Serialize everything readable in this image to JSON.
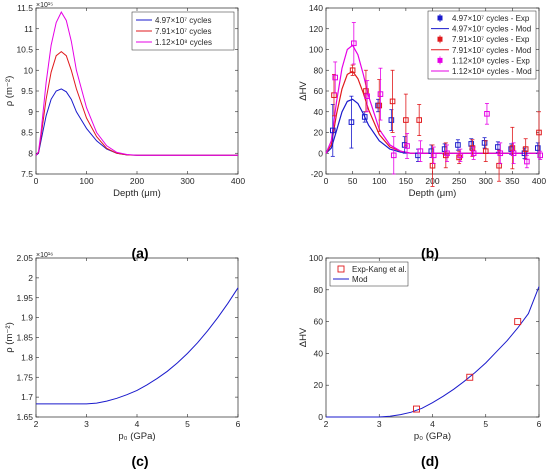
{
  "panel_labels": [
    "(a)",
    "(b)",
    "(c)",
    "(d)"
  ],
  "colors": {
    "c1": "#1a1acc",
    "c2": "#e0191c",
    "c3": "#e600e6",
    "axis": "#262626"
  },
  "chart_data": [
    {
      "id": "a",
      "type": "line",
      "xlabel": "Depth (μm)",
      "ylabel": "ρ (m⁻²)",
      "y_exponent": "×10¹⁵",
      "xlim": [
        0,
        400
      ],
      "ylim": [
        7.5,
        11.5
      ],
      "xticks": [
        0,
        100,
        200,
        300,
        400
      ],
      "yticks": [
        7.5,
        8,
        8.5,
        9,
        9.5,
        10,
        10.5,
        11,
        11.5
      ],
      "ytick_labels": [
        "7.5",
        "8",
        "8.5",
        "9",
        "9.5",
        "10",
        "10.5",
        "11",
        "11.5"
      ],
      "legend_position": "top-right",
      "series": [
        {
          "name": "4.97×10⁷ cycles",
          "color": "#1a1acc",
          "x": [
            0,
            5,
            10,
            20,
            30,
            40,
            50,
            60,
            70,
            80,
            100,
            120,
            140,
            160,
            180,
            200,
            250,
            300,
            350,
            400
          ],
          "y": [
            7.95,
            8.0,
            8.3,
            8.9,
            9.3,
            9.5,
            9.55,
            9.48,
            9.3,
            9.0,
            8.6,
            8.3,
            8.1,
            8.0,
            7.96,
            7.95,
            7.95,
            7.95,
            7.95,
            7.95
          ]
        },
        {
          "name": "7.91×10⁷ cycles",
          "color": "#e0191c",
          "x": [
            0,
            5,
            10,
            20,
            30,
            40,
            50,
            60,
            70,
            80,
            100,
            120,
            140,
            160,
            180,
            200,
            250,
            300,
            350,
            400
          ],
          "y": [
            7.95,
            8.02,
            8.4,
            9.3,
            9.95,
            10.35,
            10.45,
            10.35,
            10.0,
            9.55,
            8.85,
            8.4,
            8.12,
            8.0,
            7.96,
            7.95,
            7.95,
            7.95,
            7.95,
            7.95
          ]
        },
        {
          "name": "1.12×10⁸ cycles",
          "color": "#e600e6",
          "x": [
            0,
            5,
            10,
            20,
            30,
            40,
            50,
            60,
            70,
            80,
            100,
            120,
            140,
            160,
            180,
            200,
            250,
            300,
            350,
            400
          ],
          "y": [
            7.95,
            8.04,
            8.5,
            9.7,
            10.6,
            11.15,
            11.4,
            11.2,
            10.7,
            10.0,
            9.1,
            8.5,
            8.18,
            8.02,
            7.97,
            7.95,
            7.95,
            7.95,
            7.95,
            7.95
          ]
        }
      ]
    },
    {
      "id": "b",
      "type": "line",
      "xlabel": "Depth (μm)",
      "ylabel": "ΔHV",
      "xlim": [
        0,
        400
      ],
      "ylim": [
        -20,
        140
      ],
      "xticks": [
        0,
        50,
        100,
        150,
        200,
        250,
        300,
        350,
        400
      ],
      "yticks": [
        -20,
        0,
        20,
        40,
        60,
        80,
        100,
        120,
        140
      ],
      "legend_position": "top-right",
      "legend": [
        {
          "name": "4.97×10⁷ cycles - Exp",
          "color": "#1a1acc",
          "kind": "exp"
        },
        {
          "name": "4.97×10⁷ cycles - Mod",
          "color": "#1a1acc",
          "kind": "mod"
        },
        {
          "name": "7.91×10⁷ cycles - Exp",
          "color": "#e0191c",
          "kind": "exp"
        },
        {
          "name": "7.91×10⁷ cycles - Mod",
          "color": "#e0191c",
          "kind": "mod"
        },
        {
          "name": "1.12×10⁸ cycles - Exp",
          "color": "#e600e6",
          "kind": "exp"
        },
        {
          "name": "1.12×10⁸ cycles - Mod",
          "color": "#e600e6",
          "kind": "mod"
        }
      ],
      "model_series": [
        {
          "color": "#1a1acc",
          "x": [
            0,
            10,
            20,
            30,
            40,
            50,
            60,
            70,
            80,
            100,
            120,
            140,
            160,
            180,
            200,
            250,
            300,
            350,
            400
          ],
          "y": [
            0,
            5,
            22,
            40,
            50,
            52,
            48,
            38,
            27,
            12,
            4,
            1,
            0,
            0,
            0,
            0,
            0,
            0,
            0
          ]
        },
        {
          "color": "#e0191c",
          "x": [
            0,
            10,
            20,
            30,
            40,
            50,
            60,
            70,
            80,
            100,
            120,
            140,
            160,
            180,
            200,
            250,
            300,
            350,
            400
          ],
          "y": [
            0,
            8,
            38,
            62,
            76,
            79,
            72,
            58,
            42,
            18,
            6,
            2,
            0,
            0,
            0,
            0,
            0,
            0,
            0
          ]
        },
        {
          "color": "#e600e6",
          "x": [
            0,
            10,
            20,
            30,
            40,
            50,
            60,
            70,
            80,
            100,
            120,
            140,
            160,
            180,
            200,
            250,
            300,
            350,
            400
          ],
          "y": [
            0,
            12,
            50,
            82,
            100,
            104,
            95,
            76,
            55,
            23,
            8,
            2,
            0,
            0,
            0,
            0,
            0,
            0,
            0
          ]
        }
      ],
      "exp_series": [
        {
          "color": "#1a1acc",
          "points": [
            [
              15,
              22,
              25
            ],
            [
              50,
              30,
              25
            ],
            [
              75,
              35,
              5
            ],
            [
              100,
              46,
              6
            ],
            [
              125,
              32,
              10
            ],
            [
              150,
              8,
              8
            ],
            [
              175,
              -2,
              6
            ],
            [
              200,
              2,
              6
            ],
            [
              225,
              4,
              5
            ],
            [
              250,
              8,
              5
            ],
            [
              275,
              9,
              5
            ],
            [
              300,
              10,
              5
            ],
            [
              325,
              6,
              5
            ],
            [
              350,
              4,
              5
            ],
            [
              375,
              0,
              5
            ],
            [
              400,
              5,
              5
            ]
          ]
        },
        {
          "color": "#e0191c",
          "points": [
            [
              15,
              56,
              20
            ],
            [
              50,
              80,
              5
            ],
            [
              75,
              60,
              20
            ],
            [
              100,
              46,
              25
            ],
            [
              125,
              50,
              30
            ],
            [
              150,
              32,
              25
            ],
            [
              175,
              32,
              15
            ],
            [
              200,
              -12,
              20
            ],
            [
              225,
              -2,
              12
            ],
            [
              250,
              -4,
              6
            ],
            [
              275,
              5,
              8
            ],
            [
              300,
              2,
              10
            ],
            [
              325,
              -12,
              15
            ],
            [
              350,
              5,
              20
            ],
            [
              375,
              4,
              10
            ],
            [
              400,
              20,
              20
            ]
          ]
        },
        {
          "color": "#e600e6",
          "points": [
            [
              15,
              73,
              15
            ],
            [
              50,
              106,
              20
            ],
            [
              75,
              55,
              15
            ],
            [
              100,
              57,
              25
            ],
            [
              125,
              -2,
              18
            ],
            [
              150,
              7,
              12
            ],
            [
              175,
              2,
              10
            ],
            [
              200,
              -2,
              8
            ],
            [
              225,
              0,
              8
            ],
            [
              250,
              -2,
              6
            ],
            [
              275,
              0,
              6
            ],
            [
              300,
              38,
              10
            ],
            [
              325,
              0,
              10
            ],
            [
              350,
              0,
              10
            ],
            [
              375,
              -8,
              6
            ],
            [
              400,
              -2,
              4
            ]
          ]
        }
      ]
    },
    {
      "id": "c",
      "type": "line",
      "xlabel": "p₀ (GPa)",
      "ylabel": "ρ (m⁻²)",
      "y_exponent": "×10¹⁶",
      "xlim": [
        2,
        6
      ],
      "ylim": [
        1.65,
        2.05
      ],
      "xticks": [
        2,
        3,
        4,
        5,
        6
      ],
      "yticks": [
        1.65,
        1.7,
        1.75,
        1.8,
        1.85,
        1.9,
        1.95,
        2,
        2.05
      ],
      "ytick_labels": [
        "1.65",
        "1.7",
        "1.75",
        "1.8",
        "1.85",
        "1.9",
        "1.95",
        "2",
        "2.05"
      ],
      "series": [
        {
          "color": "#1a1acc",
          "x": [
            2,
            2.5,
            3,
            3.2,
            3.4,
            3.6,
            3.8,
            4,
            4.2,
            4.4,
            4.6,
            4.8,
            5,
            5.2,
            5.4,
            5.6,
            5.8,
            6
          ],
          "y": [
            1.683,
            1.683,
            1.683,
            1.685,
            1.69,
            1.697,
            1.706,
            1.717,
            1.731,
            1.747,
            1.765,
            1.786,
            1.81,
            1.837,
            1.867,
            1.9,
            1.936,
            1.975
          ]
        }
      ]
    },
    {
      "id": "d",
      "type": "scatter",
      "xlabel": "p₀ (GPa)",
      "ylabel": "ΔHV",
      "xlim": [
        2,
        6
      ],
      "ylim": [
        0,
        100
      ],
      "xticks": [
        2,
        3,
        4,
        5,
        6
      ],
      "yticks": [
        0,
        20,
        40,
        60,
        80,
        100
      ],
      "legend_position": "top-left",
      "legend": [
        {
          "name": "Exp-Kang et al.",
          "color": "#e0191c",
          "kind": "square"
        },
        {
          "name": "Mod",
          "color": "#1a1acc",
          "kind": "line"
        }
      ],
      "exp_points": {
        "color": "#e0191c",
        "x": [
          3.7,
          4.7,
          5.6
        ],
        "y": [
          5,
          25,
          60
        ]
      },
      "model": {
        "color": "#1a1acc",
        "x": [
          2,
          2.5,
          3,
          3.2,
          3.4,
          3.6,
          3.8,
          4,
          4.2,
          4.4,
          4.6,
          4.8,
          5,
          5.2,
          5.4,
          5.6,
          5.8,
          6
        ],
        "y": [
          0,
          0,
          0,
          0.5,
          1.5,
          3,
          5.5,
          9,
          13,
          17.5,
          22.5,
          28,
          34,
          41,
          48,
          56,
          65,
          82
        ]
      }
    }
  ]
}
